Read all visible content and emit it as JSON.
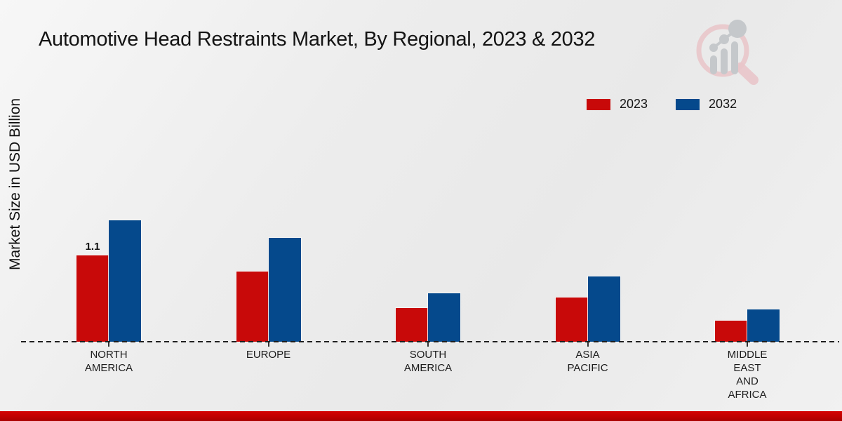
{
  "page": {
    "title": "Automotive Head Restraints Market, By Regional, 2023 & 2032"
  },
  "icons": {
    "logo": "market-research-future-magnifier-chart-logo"
  },
  "branding": {
    "accent_bar_color": "#c00000"
  },
  "chart_data": {
    "type": "bar",
    "title": "Automotive Head Restraints Market, By Regional, 2023 & 2032",
    "xlabel": "",
    "ylabel": "Market Size in USD Billion",
    "categories": [
      "NORTH\nAMERICA",
      "EUROPE",
      "SOUTH\nAMERICA",
      "ASIA\nPACIFIC",
      "MIDDLE\nEAST\nAND\nAFRICA"
    ],
    "series": [
      {
        "name": "2023",
        "color": "#c80909",
        "values": [
          1.1,
          0.89,
          0.43,
          0.56,
          0.27
        ]
      },
      {
        "name": "2032",
        "color": "#05498c",
        "values": [
          1.55,
          1.32,
          0.62,
          0.83,
          0.41
        ]
      }
    ],
    "annotations": [
      {
        "series_index": 0,
        "category_index": 0,
        "text": "1.1"
      }
    ],
    "ylim": [
      0,
      1.8
    ],
    "grid": false,
    "axis_style": "dashed-baseline",
    "legend_position": "top-right"
  }
}
